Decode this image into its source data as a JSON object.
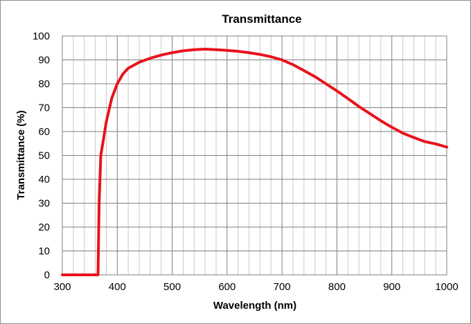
{
  "chart_data": {
    "type": "line",
    "title": "Transmittance",
    "xlabel": "Wavelength (nm)",
    "ylabel": "Transmittance (%)",
    "xlim": [
      300,
      1000
    ],
    "ylim": [
      0,
      100
    ],
    "x_ticks": [
      300,
      400,
      500,
      600,
      700,
      800,
      900,
      1000
    ],
    "y_ticks": [
      0,
      10,
      20,
      30,
      40,
      50,
      60,
      70,
      80,
      90,
      100
    ],
    "x_minor_step": 20,
    "grid": true,
    "legend": "none",
    "colors": {
      "series": "#e8131b",
      "grid": "#c8c8c8",
      "axis": "#7f7f7f"
    },
    "series": [
      {
        "x": [
          300,
          360,
          365,
          367,
          370,
          375,
          380,
          390,
          400,
          410,
          420,
          440,
          460,
          480,
          500,
          520,
          540,
          560,
          580,
          600,
          620,
          640,
          660,
          680,
          700,
          720,
          740,
          760,
          780,
          800,
          820,
          840,
          860,
          880,
          900,
          920,
          940,
          960,
          980,
          1000
        ],
        "y": [
          0,
          0,
          0,
          30,
          50,
          57,
          64,
          74,
          80,
          84,
          86.5,
          89,
          90.7,
          92,
          93,
          93.8,
          94.3,
          94.5,
          94.3,
          94,
          93.6,
          93,
          92.3,
          91.3,
          90,
          88,
          85.5,
          83,
          80,
          77,
          73.8,
          70.5,
          67.5,
          64.5,
          61.8,
          59.3,
          57.5,
          55.8,
          54.8,
          53.5
        ]
      }
    ]
  }
}
